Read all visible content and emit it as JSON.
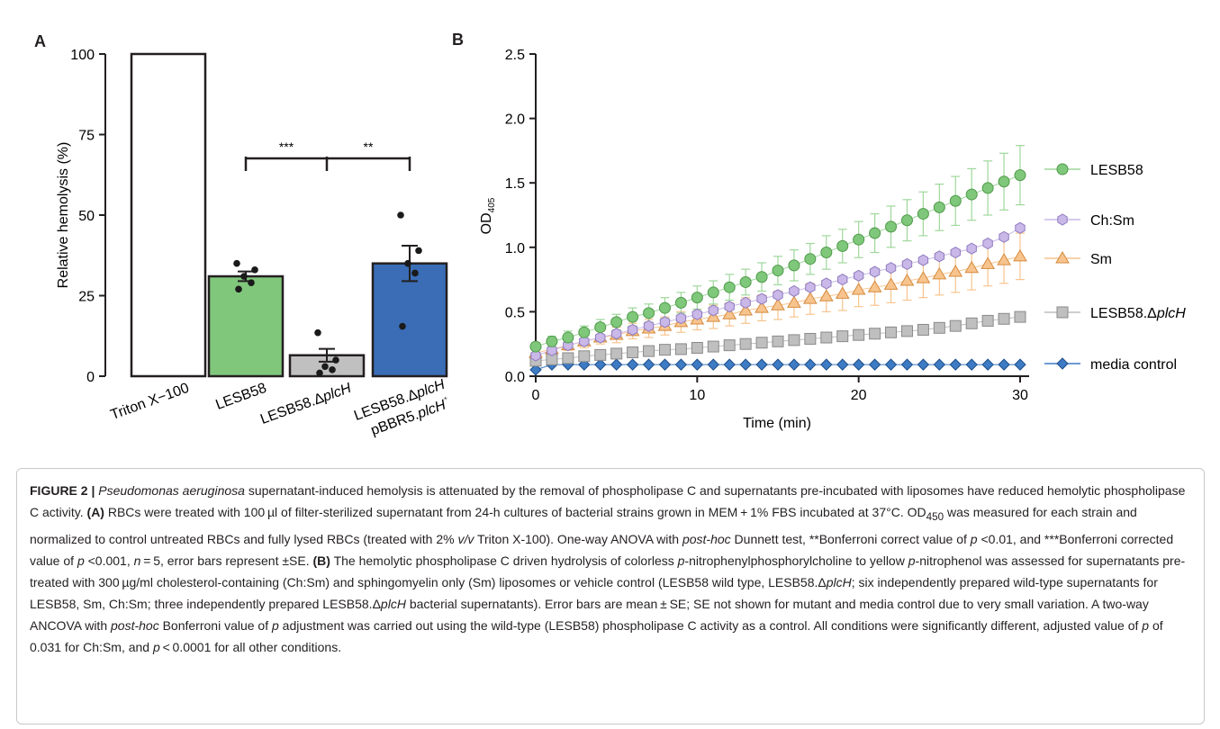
{
  "panel_a": {
    "letter": "A",
    "y_axis_label": "Relative hemolysis (%)",
    "ytick_labels": [
      "0",
      "25",
      "50",
      "75",
      "100"
    ],
    "sig_left": "***",
    "sig_right": "**",
    "bar_labels": [
      "Triton X−100",
      "LESB58",
      "LESB58.ΔplcH",
      "LESB58.ΔplcH pBBR5.plcH⁺"
    ]
  },
  "panel_b": {
    "letter": "B",
    "y_axis_label": "OD405",
    "x_axis_label": "Time (min)",
    "ytick_labels": [
      "0.0",
      "0.5",
      "1.0",
      "1.5",
      "2.0",
      "2.5"
    ],
    "xtick_labels": [
      "0",
      "10",
      "20",
      "30"
    ]
  },
  "chart_data": [
    {
      "type": "bar",
      "title": "",
      "ylabel": "Relative hemolysis (%)",
      "ylim": [
        0,
        100
      ],
      "categories": [
        "Triton X−100",
        "LESB58",
        "LESB58.ΔplcH",
        "LESB58.ΔplcH pBBR5.plcH⁺"
      ],
      "values": [
        100,
        31,
        6.5,
        35
      ],
      "errors": [
        0,
        1.5,
        2,
        5.5
      ],
      "colors": [
        "#ffffff",
        "#80c77b",
        "#c0c0c0",
        "#3a6db5"
      ],
      "points": [
        [],
        [
          27,
          29,
          31,
          33,
          35
        ],
        [
          1,
          2,
          3,
          5,
          13.5
        ],
        [
          15.5,
          32,
          35,
          39,
          50
        ]
      ],
      "significance": [
        {
          "from": 1,
          "to": 2,
          "label": "***"
        },
        {
          "from": 2,
          "to": 3,
          "label": "**"
        }
      ]
    },
    {
      "type": "scatter",
      "title": "",
      "xlabel": "Time (min)",
      "ylabel": "OD405",
      "xlim": [
        0,
        30
      ],
      "ylim": [
        0,
        2.5
      ],
      "x": [
        0,
        1,
        2,
        3,
        4,
        5,
        6,
        7,
        8,
        9,
        10,
        11,
        12,
        13,
        14,
        15,
        16,
        17,
        18,
        19,
        20,
        21,
        22,
        23,
        24,
        25,
        26,
        27,
        28,
        29,
        30
      ],
      "series": [
        {
          "name": "LESB58",
          "label_main": "LESB58",
          "label_italic": "",
          "color": "#7fc77a",
          "edge": "#4f9a4a",
          "marker": "circle",
          "values": [
            0.23,
            0.27,
            0.3,
            0.34,
            0.38,
            0.42,
            0.46,
            0.49,
            0.53,
            0.57,
            0.61,
            0.65,
            0.69,
            0.73,
            0.77,
            0.82,
            0.86,
            0.91,
            0.96,
            1.01,
            1.06,
            1.11,
            1.16,
            1.21,
            1.26,
            1.31,
            1.36,
            1.41,
            1.46,
            1.51,
            1.56
          ],
          "errors": [
            0.03,
            0.04,
            0.05,
            0.05,
            0.06,
            0.06,
            0.07,
            0.07,
            0.08,
            0.08,
            0.09,
            0.09,
            0.1,
            0.1,
            0.11,
            0.11,
            0.12,
            0.12,
            0.13,
            0.13,
            0.14,
            0.15,
            0.16,
            0.16,
            0.17,
            0.18,
            0.19,
            0.2,
            0.21,
            0.22,
            0.23
          ],
          "err_color": "#9fd79b"
        },
        {
          "name": "Ch:Sm",
          "label_main": "Ch:Sm",
          "label_italic": "",
          "color": "#c9b8e8",
          "edge": "#8f7bbf",
          "marker": "hexagon",
          "values": [
            0.16,
            0.2,
            0.24,
            0.27,
            0.3,
            0.33,
            0.36,
            0.39,
            0.42,
            0.45,
            0.48,
            0.51,
            0.54,
            0.57,
            0.6,
            0.63,
            0.66,
            0.69,
            0.72,
            0.75,
            0.78,
            0.81,
            0.84,
            0.87,
            0.9,
            0.93,
            0.96,
            0.99,
            1.03,
            1.08,
            1.15
          ],
          "errors": [
            0.01,
            0.01,
            0.01,
            0.01,
            0.01,
            0.01,
            0.01,
            0.01,
            0.01,
            0.01,
            0.01,
            0.01,
            0.01,
            0.01,
            0.01,
            0.01,
            0.01,
            0.01,
            0.01,
            0.01,
            0.01,
            0.01,
            0.01,
            0.01,
            0.01,
            0.01,
            0.01,
            0.01,
            0.01,
            0.01,
            0.01
          ],
          "err_color": "#c9b8e8"
        },
        {
          "name": "Sm",
          "label_main": "Sm",
          "label_italic": "",
          "color": "#f7c48e",
          "edge": "#d58a3d",
          "marker": "triangle",
          "values": [
            0.18,
            0.21,
            0.24,
            0.27,
            0.3,
            0.32,
            0.35,
            0.37,
            0.39,
            0.42,
            0.44,
            0.46,
            0.48,
            0.51,
            0.53,
            0.55,
            0.57,
            0.6,
            0.62,
            0.64,
            0.67,
            0.69,
            0.71,
            0.74,
            0.76,
            0.79,
            0.81,
            0.84,
            0.87,
            0.9,
            0.93
          ],
          "errors": [
            0.03,
            0.04,
            0.04,
            0.05,
            0.05,
            0.06,
            0.06,
            0.07,
            0.07,
            0.08,
            0.08,
            0.09,
            0.09,
            0.1,
            0.1,
            0.11,
            0.11,
            0.12,
            0.12,
            0.13,
            0.13,
            0.14,
            0.14,
            0.15,
            0.15,
            0.16,
            0.16,
            0.17,
            0.17,
            0.18,
            0.18
          ],
          "err_color": "#f7c48e"
        },
        {
          "name": "LESB58.ΔplcH",
          "label_main": "LESB58.Δ",
          "label_italic": "plcH",
          "color": "#bfbfbf",
          "edge": "#8a8a8a",
          "marker": "square",
          "values": [
            0.12,
            0.13,
            0.14,
            0.155,
            0.165,
            0.175,
            0.185,
            0.195,
            0.205,
            0.21,
            0.22,
            0.23,
            0.24,
            0.25,
            0.26,
            0.27,
            0.28,
            0.29,
            0.3,
            0.31,
            0.32,
            0.33,
            0.34,
            0.35,
            0.36,
            0.375,
            0.39,
            0.41,
            0.43,
            0.445,
            0.46
          ],
          "errors": [],
          "err_color": "#bfbfbf"
        },
        {
          "name": "media control",
          "label_main": "media control",
          "label_italic": "",
          "color": "#3d7bc4",
          "edge": "#1f4f8a",
          "marker": "diamond",
          "values": [
            0.05,
            0.09,
            0.09,
            0.09,
            0.09,
            0.09,
            0.09,
            0.09,
            0.09,
            0.09,
            0.09,
            0.09,
            0.09,
            0.09,
            0.09,
            0.09,
            0.09,
            0.09,
            0.09,
            0.09,
            0.09,
            0.09,
            0.09,
            0.09,
            0.09,
            0.09,
            0.09,
            0.09,
            0.09,
            0.09,
            0.09
          ],
          "errors": [],
          "err_color": "#3d7bc4"
        }
      ]
    }
  ],
  "caption": {
    "fig_label": "FIGURE 2 | ",
    "title_italic": "Pseudomonas aeruginosa",
    "title_rest": " supernatant-induced hemolysis is attenuated by the removal of phospholipase C and supernatants pre-incubated with liposomes have reduced hemolytic phospholipase C activity. ",
    "a_label": "(A)",
    "a_text_1": " RBCs were treated with 100 µl of filter-sterilized supernatant from 24-h cultures of bacterial strains grown in MEM + 1% FBS incubated at 37°C. OD",
    "a_sub": "450",
    "a_text_2": " was measured for each strain and normalized to control untreated RBCs and fully lysed RBCs (treated with 2% ",
    "a_vv": "v/v",
    "a_text_3": " Triton X-100). One-way ANOVA with ",
    "a_posthoc": "post-hoc",
    "a_text_4": " Dunnett test, **Bonferroni correct value of ",
    "a_p1": "p",
    "a_text_5": " <0.01, and ***Bonferroni corrected value of ",
    "a_p2": "p",
    "a_text_6": " <0.001, ",
    "a_n": "n",
    "a_text_7": " = 5, error bars represent ±SE. ",
    "b_label": "(B)",
    "b_text_1": " The hemolytic phospholipase C driven hydrolysis of colorless ",
    "b_p_a": "p",
    "b_text_2": "-nitrophenylphosphorylcholine to yellow ",
    "b_p_b": "p",
    "b_text_3": "-nitrophenol was assessed for supernatants pre-treated with 300 µg/ml cholesterol-containing (Ch:Sm) and sphingomyelin only (Sm) liposomes or vehicle control (LESB58 wild type, LESB58.Δ",
    "b_plch1": "plcH",
    "b_text_4": "; six independently prepared wild-type supernatants for LESB58, Sm, Ch:Sm; three independently prepared LESB58.Δ",
    "b_plch2": "plcH",
    "b_text_5": " bacterial supernatants). Error bars are mean ± SE; SE not shown for mutant and media control due to very small variation. A two-way ANCOVA with ",
    "b_posthoc": "post-hoc",
    "b_text_6": " Bonferroni value of ",
    "b_p_c": "p",
    "b_text_7": " adjustment was carried out using the wild-type (LESB58) phospholipase C activity as a control. All conditions were significantly different, adjusted value of ",
    "b_p_d": "p",
    "b_text_8": " of 0.031 for Ch:Sm, and ",
    "b_p_e": "p",
    "b_text_9": " < 0.0001 for all other conditions."
  }
}
